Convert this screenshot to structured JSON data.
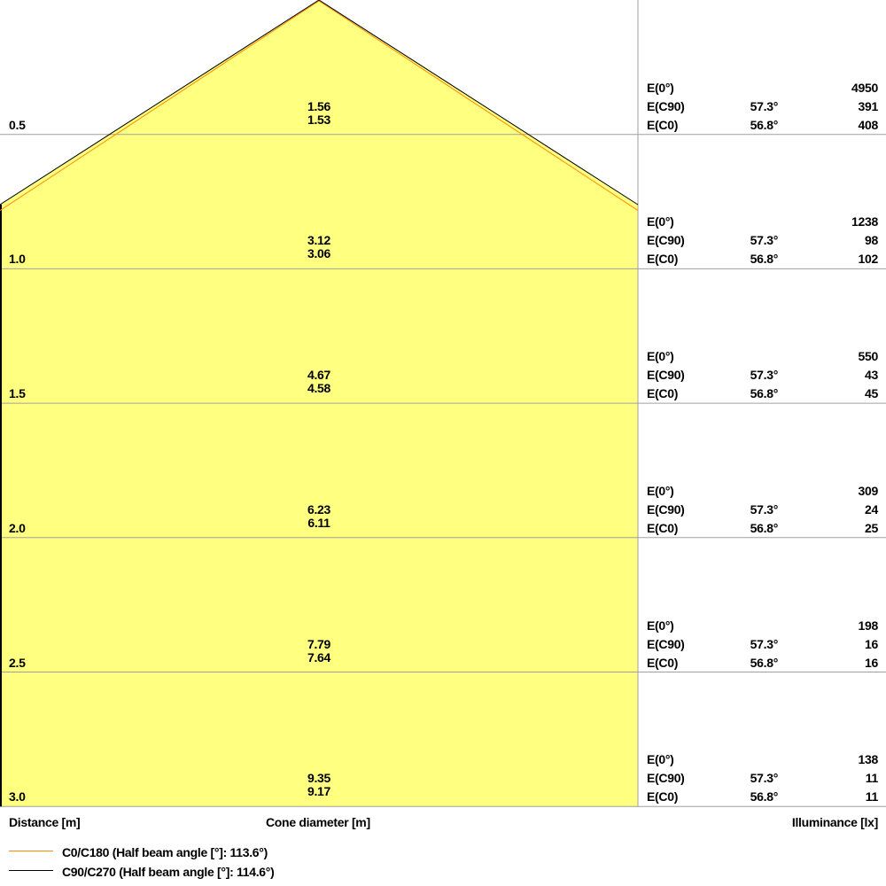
{
  "chart_data": {
    "type": "cone-diagram",
    "xlabel": "Cone diameter [m]",
    "ylabel": "Distance [m]",
    "right_label": "Illuminance [lx]",
    "colors": {
      "fill": "#ffff80",
      "c0": "#ff8c00",
      "c90": "#000000",
      "grid": "#a0a0a0"
    },
    "series": [
      {
        "name": "C0/C180 (Half beam angle [°]: 113.6°)",
        "color": "#ff8c00"
      },
      {
        "name": "C90/C270 (Half beam angle [°]: 114.6°)",
        "color": "#000000"
      }
    ],
    "rows": [
      {
        "distance": "0.5",
        "d_c90": "1.56",
        "d_c0": "1.53",
        "e0": "4950",
        "ec90_angle": "57.3°",
        "ec90": "391",
        "ec0_angle": "56.8°",
        "ec0": "408"
      },
      {
        "distance": "1.0",
        "d_c90": "3.12",
        "d_c0": "3.06",
        "e0": "1238",
        "ec90_angle": "57.3°",
        "ec90": "98",
        "ec0_angle": "56.8°",
        "ec0": "102"
      },
      {
        "distance": "1.5",
        "d_c90": "4.67",
        "d_c0": "4.58",
        "e0": "550",
        "ec90_angle": "57.3°",
        "ec90": "43",
        "ec0_angle": "56.8°",
        "ec0": "45"
      },
      {
        "distance": "2.0",
        "d_c90": "6.23",
        "d_c0": "6.11",
        "e0": "309",
        "ec90_angle": "57.3°",
        "ec90": "24",
        "ec0_angle": "56.8°",
        "ec0": "25"
      },
      {
        "distance": "2.5",
        "d_c90": "7.79",
        "d_c0": "7.64",
        "e0": "198",
        "ec90_angle": "57.3°",
        "ec90": "16",
        "ec0_angle": "56.8°",
        "ec0": "16"
      },
      {
        "distance": "3.0",
        "d_c90": "9.35",
        "d_c0": "9.17",
        "e0": "138",
        "ec90_angle": "57.3°",
        "ec90": "11",
        "ec0_angle": "56.8°",
        "ec0": "11"
      }
    ],
    "row_labels": {
      "e0": "E(0°)",
      "ec90": "E(C90)",
      "ec0": "E(C0)"
    }
  }
}
